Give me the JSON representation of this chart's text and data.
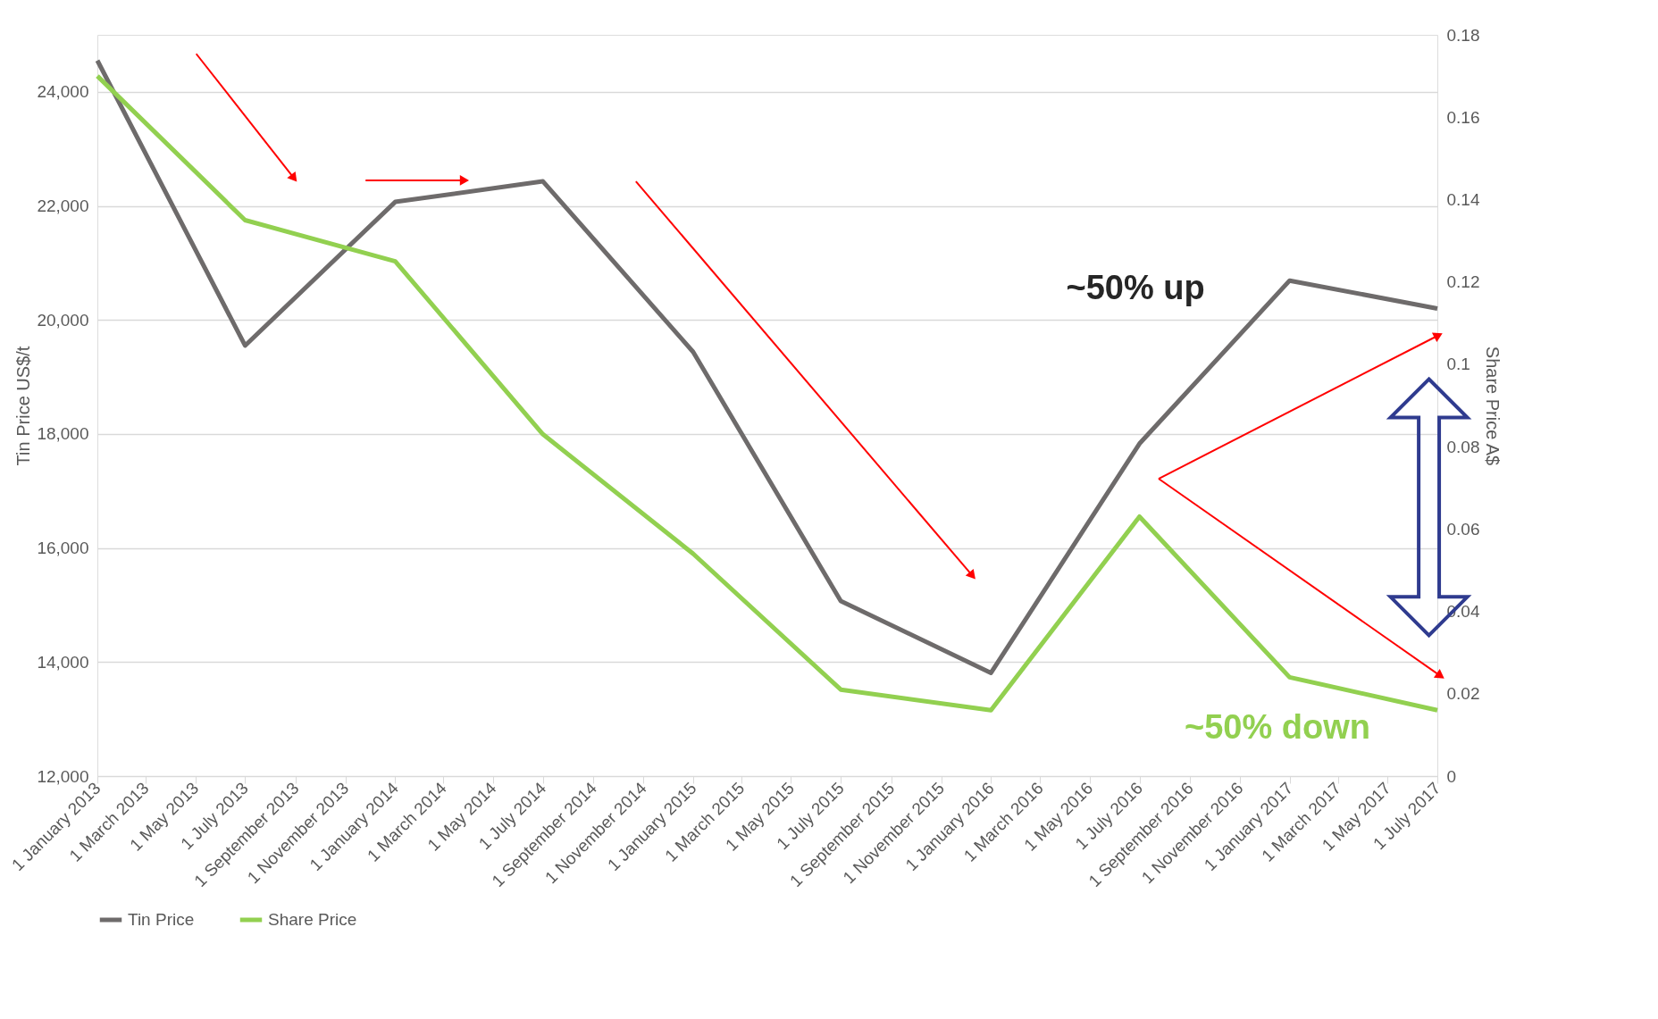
{
  "chart_data": {
    "type": "line",
    "x": [
      "2013-01-01",
      "2013-07-01",
      "2014-01-01",
      "2014-07-01",
      "2015-01-01",
      "2015-07-01",
      "2016-01-01",
      "2016-07-01",
      "2017-01-01",
      "2017-07-01"
    ],
    "series": [
      {
        "name": "Tin Price",
        "color": "#6e6b6b",
        "values": [
          24550,
          19550,
          22070,
          22430,
          19440,
          15070,
          13810,
          17830,
          20690,
          20200
        ]
      },
      {
        "name": "Share Price",
        "color": "#92d050",
        "axis": "y2",
        "values": [
          0.17,
          0.135,
          0.125,
          0.083,
          0.054,
          0.021,
          0.016,
          0.063,
          0.024,
          0.016
        ]
      }
    ],
    "ylabel": "Tin Price US$/t",
    "y2label": "Share Price A$",
    "xlim": [
      "2013-01-01",
      "2017-07-01"
    ],
    "xticks": [
      {
        "value": "2013-01-01",
        "label": "1 January 2013"
      },
      {
        "value": "2013-03-01",
        "label": "1 March 2013"
      },
      {
        "value": "2013-05-01",
        "label": "1 May 2013"
      },
      {
        "value": "2013-07-01",
        "label": "1 July 2013"
      },
      {
        "value": "2013-09-01",
        "label": "1 September 2013"
      },
      {
        "value": "2013-11-01",
        "label": "1 November 2013"
      },
      {
        "value": "2014-01-01",
        "label": "1 January 2014"
      },
      {
        "value": "2014-03-01",
        "label": "1 March 2014"
      },
      {
        "value": "2014-05-01",
        "label": "1 May 2014"
      },
      {
        "value": "2014-07-01",
        "label": "1 July 2014"
      },
      {
        "value": "2014-09-01",
        "label": "1 September 2014"
      },
      {
        "value": "2014-11-01",
        "label": "1 November 2014"
      },
      {
        "value": "2015-01-01",
        "label": "1 January 2015"
      },
      {
        "value": "2015-03-01",
        "label": "1 March 2015"
      },
      {
        "value": "2015-05-01",
        "label": "1 May 2015"
      },
      {
        "value": "2015-07-01",
        "label": "1 July 2015"
      },
      {
        "value": "2015-09-01",
        "label": "1 September 2015"
      },
      {
        "value": "2015-11-01",
        "label": "1 November 2015"
      },
      {
        "value": "2016-01-01",
        "label": "1 January 2016"
      },
      {
        "value": "2016-03-01",
        "label": "1 March 2016"
      },
      {
        "value": "2016-05-01",
        "label": "1 May 2016"
      },
      {
        "value": "2016-07-01",
        "label": "1 July 2016"
      },
      {
        "value": "2016-09-01",
        "label": "1 September 2016"
      },
      {
        "value": "2016-11-01",
        "label": "1 November 2016"
      },
      {
        "value": "2017-01-01",
        "label": "1 January 2017"
      },
      {
        "value": "2017-03-01",
        "label": "1 March 2017"
      },
      {
        "value": "2017-05-01",
        "label": "1 May 2017"
      },
      {
        "value": "2017-07-01",
        "label": "1 July 2017"
      }
    ],
    "ylim": [
      12000,
      25000
    ],
    "yticks": [
      {
        "value": 12000,
        "label": "12,000"
      },
      {
        "value": 14000,
        "label": "14,000"
      },
      {
        "value": 16000,
        "label": "16,000"
      },
      {
        "value": 18000,
        "label": "18,000"
      },
      {
        "value": 20000,
        "label": "20,000"
      },
      {
        "value": 22000,
        "label": "22,000"
      },
      {
        "value": 24000,
        "label": "24,000"
      }
    ],
    "y2lim": [
      0,
      0.18
    ],
    "y2ticks": [
      0,
      0.02,
      0.04,
      0.06,
      0.08,
      0.1,
      0.12,
      0.14,
      0.16,
      0.18
    ],
    "annotations": [
      "~50% up",
      "~50% down"
    ],
    "grid": "y",
    "legend": "bottom",
    "marker": "none",
    "line_style": "solid"
  }
}
